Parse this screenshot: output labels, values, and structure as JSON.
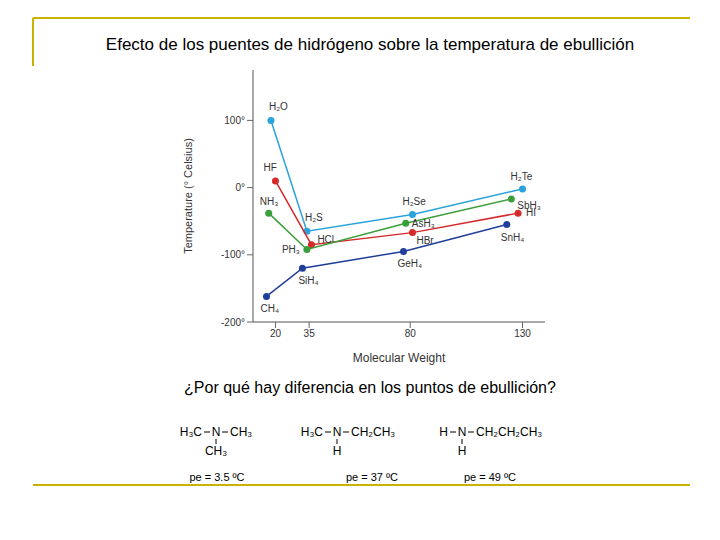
{
  "chart_data": {
    "type": "line",
    "title": "Efecto de los puentes de hidrógeno sobre la temperatura de ebullición",
    "x_label": "Molecular Weight",
    "y_label": "Temperature (° Celsius)",
    "xlim": [
      10,
      140
    ],
    "xticks": [
      20,
      35,
      80,
      130
    ],
    "ylim": [
      -200,
      175
    ],
    "yticks": [
      {
        "value": 100,
        "label": "100°"
      },
      {
        "value": 0,
        "label": "0°"
      },
      {
        "value": -100,
        "label": "-100°"
      },
      {
        "value": -200,
        "label": "-200°"
      }
    ],
    "grid": false,
    "series": [
      {
        "color": "#29a3dc",
        "x": [
          18,
          34,
          81,
          130
        ],
        "values": [
          100,
          -65,
          -40,
          -2
        ],
        "labels": [
          "H₂O",
          "H₂S",
          "H₂Se",
          "H₂Te"
        ]
      },
      {
        "color": "#d42a2a",
        "x": [
          20,
          36,
          81,
          128
        ],
        "values": [
          10,
          -85,
          -67,
          -38
        ],
        "labels": [
          "HF",
          "HCl",
          "HBr",
          "HI"
        ]
      },
      {
        "color": "#3a9e3a",
        "x": [
          17,
          34,
          78,
          125
        ],
        "values": [
          -38,
          -92,
          -53,
          -17
        ],
        "labels": [
          "NH₃",
          "PH₃",
          "AsH₃",
          "SbH₃"
        ]
      },
      {
        "color": "#1f3f9a",
        "x": [
          16,
          32,
          77,
          123
        ],
        "values": [
          -162,
          -120,
          -95,
          -55
        ],
        "labels": [
          "CH₄",
          "SiH₄",
          "GeH₄",
          "SnH₄"
        ]
      }
    ]
  },
  "question": "¿Por qué hay diferencia en los puntos de ebullición?",
  "molecules": [
    {
      "left": "H₃C",
      "center": "N",
      "right": "CH₃",
      "below": "CH₃",
      "label": "pe = 3.5 ºC"
    },
    {
      "left": "H₃C",
      "center": "N",
      "right": "CH₂CH₃",
      "below": "H",
      "label": "pe = 37 ºC"
    },
    {
      "left": "H",
      "center": "N",
      "right": "CH₂CH₂CH₃",
      "below": "H",
      "label": "pe = 49 ºC"
    }
  ]
}
